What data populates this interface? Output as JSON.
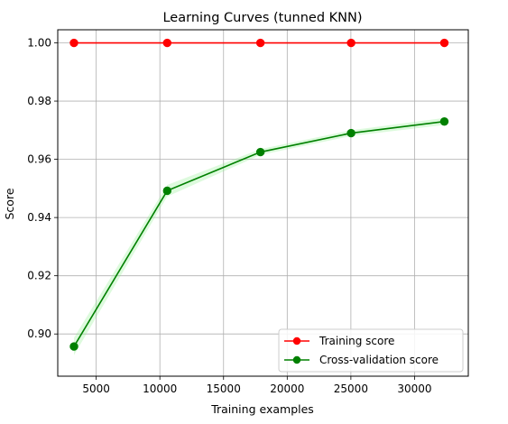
{
  "chart_data": {
    "type": "line",
    "title": "Learning Curves (tunned KNN)",
    "xlabel": "Training examples",
    "ylabel": "Score",
    "xlim": [
      1980,
      34220
    ],
    "ylim": [
      0.8855,
      1.0045
    ],
    "xticks": [
      5000,
      10000,
      15000,
      20000,
      25000,
      30000
    ],
    "xtick_labels": [
      "5000",
      "10000",
      "15000",
      "20000",
      "25000",
      "30000"
    ],
    "yticks": [
      0.9,
      0.92,
      0.94,
      0.96,
      0.98,
      1.0
    ],
    "ytick_labels": [
      "0.90",
      "0.92",
      "0.94",
      "0.96",
      "0.98",
      "1.00"
    ],
    "grid": true,
    "legend_position": "lower-right",
    "x": [
      3254,
      10575,
      17897,
      25018,
      32340
    ],
    "series": [
      {
        "name": "Training score",
        "color": "#ff0000",
        "values": [
          1.0,
          1.0,
          1.0,
          1.0,
          1.0
        ],
        "band_lower": [
          1.0,
          1.0,
          1.0,
          1.0,
          1.0
        ],
        "band_upper": [
          1.0,
          1.0,
          1.0,
          1.0,
          1.0
        ]
      },
      {
        "name": "Cross-validation score",
        "color": "#008000",
        "band_color": "#90ee90",
        "values": [
          0.8957,
          0.9492,
          0.9625,
          0.969,
          0.973
        ],
        "band_lower": [
          0.8927,
          0.9472,
          0.9615,
          0.968,
          0.9718
        ],
        "band_upper": [
          0.8987,
          0.9512,
          0.9635,
          0.97,
          0.9742
        ]
      }
    ]
  }
}
